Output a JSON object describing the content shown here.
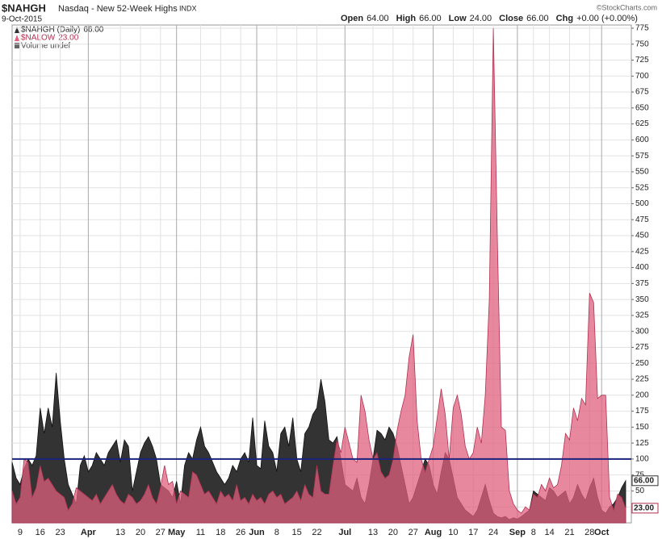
{
  "chart_data": {
    "type": "area",
    "title": "$NAHGH",
    "subtitle": "Nasdaq - New 52-Week Highs",
    "exchange": "INDX",
    "date": "9-Oct-2015",
    "quote": [
      {
        "label": "Open",
        "value": "64.00"
      },
      {
        "label": "High",
        "value": "66.00"
      },
      {
        "label": "Low",
        "value": "24.00"
      },
      {
        "label": "Close",
        "value": "66.00"
      },
      {
        "label": "Chg",
        "value": "+0.00 (+0.00%)"
      }
    ],
    "credit": "©StockCharts.com",
    "volume_note": "Volume undef",
    "categories": [
      null,
      null,
      "9",
      null,
      null,
      null,
      null,
      "16",
      null,
      null,
      null,
      null,
      "23",
      null,
      null,
      null,
      null,
      null,
      null,
      "Apr",
      null,
      null,
      null,
      null,
      null,
      null,
      null,
      "13",
      null,
      null,
      null,
      null,
      "20",
      null,
      null,
      null,
      null,
      "27",
      null,
      null,
      null,
      "May",
      null,
      null,
      null,
      null,
      null,
      "11",
      null,
      null,
      null,
      null,
      "18",
      null,
      null,
      null,
      null,
      "26",
      null,
      null,
      null,
      "Jun",
      null,
      null,
      null,
      null,
      "8",
      null,
      null,
      null,
      null,
      "15",
      null,
      null,
      null,
      null,
      "22",
      null,
      null,
      null,
      null,
      null,
      null,
      "Jul",
      null,
      null,
      null,
      null,
      null,
      null,
      "13",
      null,
      null,
      null,
      null,
      "20",
      null,
      null,
      null,
      null,
      "27",
      null,
      null,
      null,
      null,
      "Aug",
      null,
      null,
      null,
      null,
      "10",
      null,
      null,
      null,
      null,
      "17",
      null,
      null,
      null,
      null,
      "24",
      null,
      null,
      null,
      null,
      null,
      "Sep",
      null,
      null,
      null,
      "8",
      null,
      null,
      null,
      "14",
      null,
      null,
      null,
      null,
      "21",
      null,
      null,
      null,
      null,
      "28",
      null,
      null,
      "Oct",
      null,
      null,
      null,
      null,
      null,
      null
    ],
    "series": [
      {
        "name": "$NAHGH (Daily)",
        "last_label": "66.00",
        "color": "#333333",
        "values": [
          95,
          70,
          60,
          85,
          100,
          90,
          105,
          180,
          140,
          180,
          150,
          235,
          160,
          100,
          60,
          45,
          30,
          90,
          105,
          80,
          90,
          110,
          100,
          90,
          110,
          120,
          130,
          95,
          130,
          120,
          50,
          80,
          110,
          125,
          135,
          120,
          100,
          60,
          55,
          50,
          40,
          65,
          30,
          90,
          110,
          100,
          130,
          150,
          120,
          110,
          95,
          80,
          70,
          60,
          70,
          90,
          80,
          100,
          110,
          95,
          165,
          90,
          85,
          160,
          120,
          110,
          80,
          140,
          150,
          120,
          165,
          100,
          80,
          140,
          150,
          170,
          180,
          225,
          190,
          130,
          125,
          135,
          100,
          60,
          55,
          50,
          70,
          40,
          30,
          60,
          100,
          145,
          140,
          130,
          150,
          140,
          120,
          90,
          60,
          30,
          40,
          60,
          80,
          100,
          90,
          60,
          45,
          80,
          110,
          100,
          70,
          40,
          30,
          20,
          15,
          10,
          20,
          40,
          60,
          35,
          15,
          10,
          8,
          10,
          5,
          8,
          6,
          10,
          15,
          20,
          50,
          45,
          40,
          35,
          55,
          50,
          40,
          45,
          50,
          30,
          40,
          60,
          45,
          35,
          55,
          70,
          40,
          20,
          15,
          25,
          30,
          40,
          55,
          66
        ]
      },
      {
        "name": "$NALOW",
        "last_label": "23.00",
        "color": "#e0607e",
        "values": [
          50,
          30,
          40,
          100,
          95,
          40,
          55,
          90,
          65,
          70,
          60,
          50,
          45,
          40,
          20,
          30,
          55,
          50,
          45,
          40,
          35,
          45,
          30,
          40,
          50,
          60,
          45,
          35,
          30,
          45,
          40,
          30,
          35,
          45,
          60,
          40,
          30,
          55,
          90,
          60,
          65,
          30,
          50,
          45,
          40,
          80,
          75,
          60,
          45,
          50,
          40,
          30,
          50,
          40,
          45,
          35,
          60,
          35,
          40,
          30,
          45,
          35,
          40,
          30,
          45,
          50,
          40,
          45,
          30,
          35,
          40,
          50,
          35,
          60,
          45,
          40,
          90,
          50,
          45,
          45,
          90,
          130,
          110,
          150,
          125,
          100,
          95,
          200,
          175,
          130,
          100,
          110,
          80,
          70,
          75,
          100,
          145,
          175,
          200,
          260,
          295,
          160,
          100,
          80,
          100,
          120,
          165,
          210,
          170,
          100,
          180,
          200,
          170,
          120,
          100,
          110,
          150,
          125,
          200,
          350,
          775,
          450,
          150,
          145,
          50,
          30,
          20,
          15,
          25,
          20,
          45,
          40,
          60,
          50,
          70,
          55,
          60,
          90,
          140,
          130,
          180,
          160,
          195,
          185,
          360,
          345,
          195,
          200,
          200,
          40,
          20,
          45,
          40,
          23
        ]
      }
    ],
    "reference_line": 100,
    "ylim": [
      0,
      780
    ],
    "yticks": [
      25,
      50,
      75,
      100,
      125,
      150,
      175,
      200,
      225,
      250,
      275,
      300,
      325,
      350,
      375,
      400,
      425,
      450,
      475,
      500,
      525,
      550,
      575,
      600,
      625,
      650,
      675,
      700,
      725,
      750,
      775
    ],
    "grid": true
  }
}
